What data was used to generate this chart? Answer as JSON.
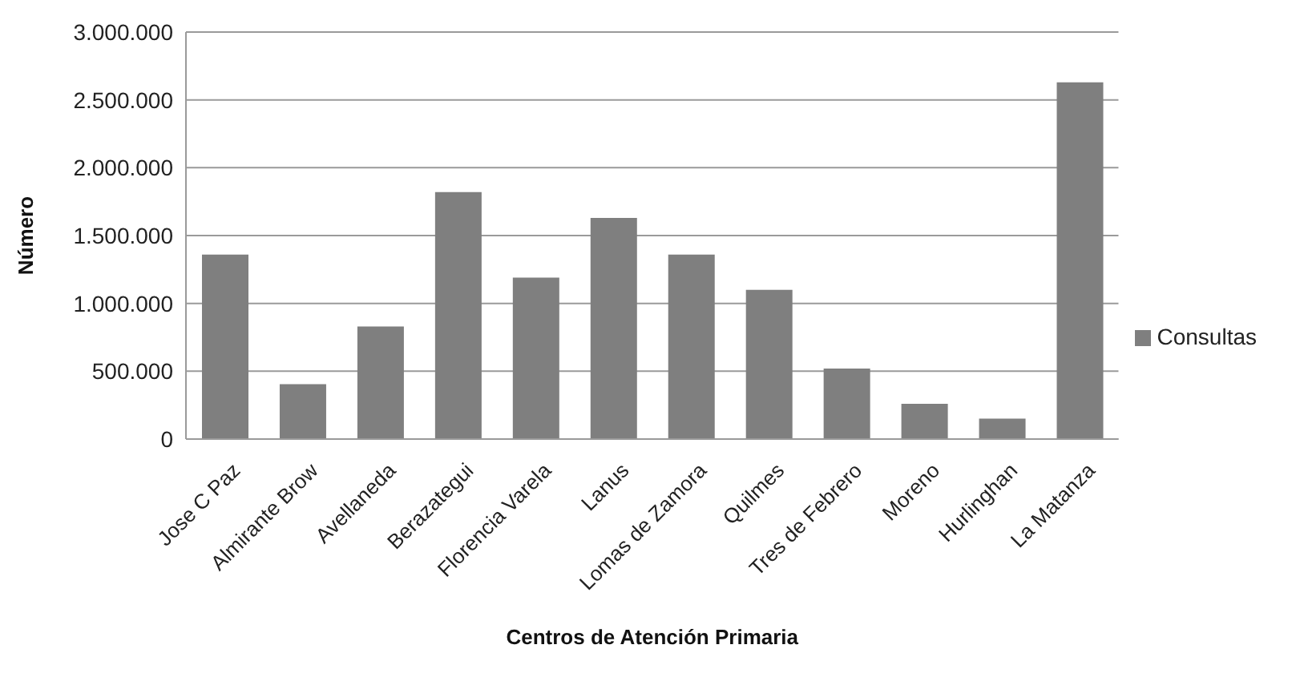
{
  "chart_data": {
    "type": "bar",
    "xlabel": "Centros de Atención Primaria",
    "ylabel": "Número",
    "categories": [
      "Jose C Paz",
      "Almirante Brow",
      "Avellaneda",
      "Berazategui",
      "Florencia Varela",
      "Lanus",
      "Lomas de Zamora",
      "Quilmes",
      "Tres de Febrero",
      "Moreno",
      "Hurlinghan",
      "La Matanza"
    ],
    "series": [
      {
        "name": "Consultas",
        "color": "#7f7f7f",
        "values": [
          1360000,
          405000,
          830000,
          1820000,
          1190000,
          1630000,
          1360000,
          1100000,
          520000,
          260000,
          150000,
          2630000
        ]
      }
    ],
    "ylim": [
      0,
      3000000
    ],
    "yticks": [
      {
        "value": 0,
        "label": "0"
      },
      {
        "value": 500000,
        "label": "500.000"
      },
      {
        "value": 1000000,
        "label": "1.000.000"
      },
      {
        "value": 1500000,
        "label": "1.500.000"
      },
      {
        "value": 2000000,
        "label": "2.000.000"
      },
      {
        "value": 2500000,
        "label": "2.500.000"
      },
      {
        "value": 3000000,
        "label": "3.000.000"
      }
    ],
    "grid": "y",
    "legend": "right"
  }
}
